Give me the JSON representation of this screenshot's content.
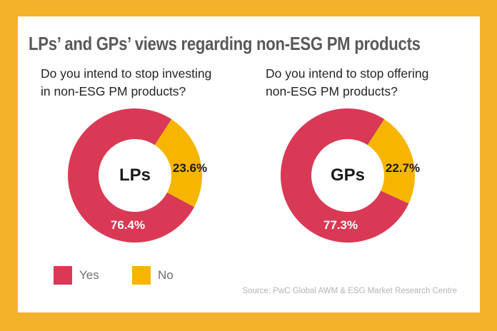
{
  "title": "LPs’ and GPs’ views regarding non-ESG PM products",
  "chart_data": [
    {
      "type": "pie",
      "donut": true,
      "title": "Do you intend to stop investing in non-ESG PM products?",
      "question_lines": [
        "Do you intend to stop investing",
        "in non-ESG PM products?"
      ],
      "center_label": "LPs",
      "categories": [
        "Yes",
        "No"
      ],
      "values": [
        76.4,
        23.6
      ],
      "value_labels": {
        "yes": "76.4%",
        "no": "23.6%"
      },
      "colors": [
        "#D93954",
        "#F7B500"
      ],
      "no_segment_start_deg": 33,
      "legend_position": "bottom-left"
    },
    {
      "type": "pie",
      "donut": true,
      "title": "Do you intend to stop offering non-ESG PM products?",
      "question_lines": [
        "Do you intend to stop offering",
        "non-ESG PM products?"
      ],
      "center_label": "GPs",
      "categories": [
        "Yes",
        "No"
      ],
      "values": [
        77.3,
        22.7
      ],
      "value_labels": {
        "yes": "77.3%",
        "no": "22.7%"
      },
      "colors": [
        "#D93954",
        "#F7B500"
      ],
      "no_segment_start_deg": 33,
      "legend_position": "bottom-left"
    }
  ],
  "legend": {
    "items": [
      {
        "label": "Yes",
        "color_key": "yes"
      },
      {
        "label": "No",
        "color_key": "no"
      }
    ]
  },
  "source": "Source: PwC Global AWM & ESG Market Research Centre",
  "colors": {
    "yes": "#D93954",
    "no": "#F7B500",
    "frame": "#F3B229",
    "panel_bg": "#FFFFFF",
    "title_text": "#58595B",
    "question_text": "#252525",
    "center_text": "#1A1A1A",
    "yes_label_text": "#FFFFFF",
    "no_label_text": "#1A1A1A",
    "legend_text": "#6D6E71",
    "source_text": "#B1B3B6"
  }
}
